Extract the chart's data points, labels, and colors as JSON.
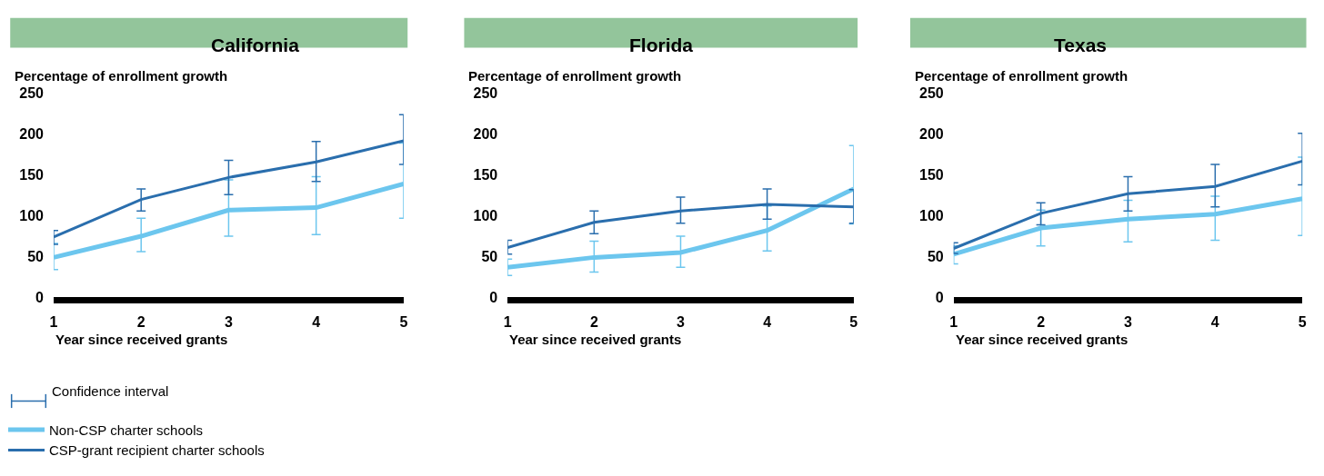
{
  "chart_data": [
    {
      "type": "line",
      "title": "California",
      "ylabel": "Percentage of enrollment growth",
      "xlabel": "Year since received grants",
      "x": [
        1,
        2,
        3,
        4,
        5
      ],
      "xlim": [
        1,
        5
      ],
      "xticks": [
        1,
        2,
        3,
        4,
        5
      ],
      "ylim": [
        0,
        250
      ],
      "yticks": [
        0,
        50,
        100,
        150,
        200,
        250
      ],
      "legend": "bottom left",
      "annotations": [
        "Confidence interval"
      ],
      "series": [
        {
          "name": "Non-CSP charter schools",
          "color": "#6cc6ee",
          "values": [
            49,
            75,
            107,
            110,
            139
          ],
          "errors": [
            [
              34,
              66
            ],
            [
              56,
              97
            ],
            [
              75,
              144
            ],
            [
              77,
              148
            ],
            [
              97,
              189
            ]
          ]
        },
        {
          "name": "CSP-grant recipient charter schools",
          "color": "#2a6ead",
          "values": [
            74,
            120,
            147,
            166,
            192
          ],
          "errors": [
            [
              65,
              82
            ],
            [
              106,
              133
            ],
            [
              126,
              168
            ],
            [
              142,
              191
            ],
            [
              163,
              224
            ]
          ]
        }
      ]
    },
    {
      "type": "line",
      "title": "Florida",
      "ylabel": "Percentage of enrollment growth",
      "xlabel": "Year since received grants",
      "x": [
        1,
        2,
        3,
        4,
        5
      ],
      "xlim": [
        1,
        5
      ],
      "xticks": [
        1,
        2,
        3,
        4,
        5
      ],
      "ylim": [
        0,
        250
      ],
      "yticks": [
        0,
        50,
        100,
        150,
        200,
        250
      ],
      "series": [
        {
          "color": "#6cc6ee",
          "values": [
            37,
            49,
            55,
            82,
            133
          ],
          "errors": [
            [
              27,
              47
            ],
            [
              31,
              69
            ],
            [
              37,
              75
            ],
            [
              57,
              112
            ],
            [
              90,
              186
            ]
          ]
        },
        {
          "color": "#2a6ead",
          "values": [
            61,
            92,
            106,
            114,
            111
          ],
          "errors": [
            [
              53,
              70
            ],
            [
              78,
              106
            ],
            [
              91,
              123
            ],
            [
              96,
              133
            ],
            [
              91,
              132
            ]
          ]
        }
      ]
    },
    {
      "type": "line",
      "title": "Texas",
      "ylabel": "Percentage of enrollment growth",
      "xlabel": "Year since received grants",
      "x": [
        1,
        2,
        3,
        4,
        5
      ],
      "xlim": [
        1,
        5
      ],
      "xticks": [
        1,
        2,
        3,
        4,
        5
      ],
      "ylim": [
        0,
        250
      ],
      "yticks": [
        0,
        50,
        100,
        150,
        200,
        250
      ],
      "series": [
        {
          "color": "#6cc6ee",
          "values": [
            53,
            85,
            96,
            102,
            121
          ],
          "errors": [
            [
              41,
              63
            ],
            [
              63,
              107
            ],
            [
              68,
              119
            ],
            [
              70,
              124
            ],
            [
              76,
              172
            ]
          ]
        },
        {
          "color": "#2a6ead",
          "values": [
            60,
            103,
            127,
            136,
            167
          ],
          "errors": [
            [
              54,
              67
            ],
            [
              89,
              116
            ],
            [
              106,
              148
            ],
            [
              111,
              163
            ],
            [
              138,
              201
            ]
          ]
        }
      ]
    }
  ]
}
